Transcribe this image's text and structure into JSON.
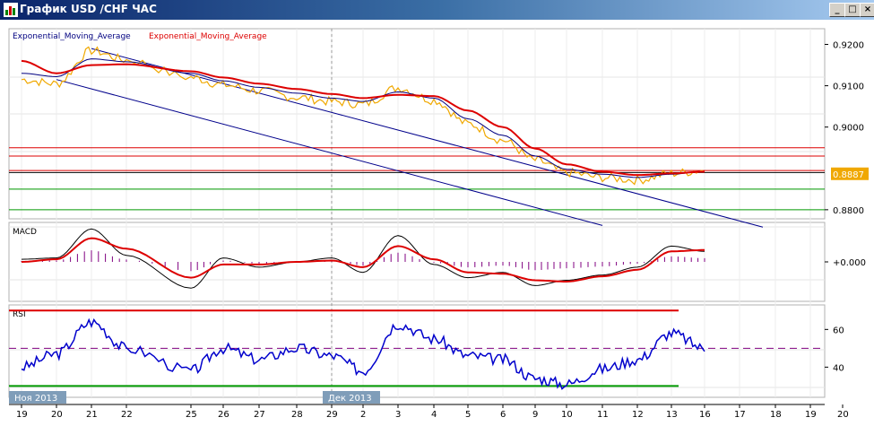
{
  "window": {
    "title": "График USD /CHF ЧАС",
    "min_label": "_",
    "max_label": "□",
    "close_label": "×"
  },
  "colors": {
    "price": "#f0a800",
    "ema_fast": "#000080",
    "ema_slow": "#dd0000",
    "channel": "#00008b",
    "resistance": "#dd0000",
    "support": "#009900",
    "rsi": "#0000cc",
    "macd_hist": "#800080",
    "current_price_bg": "#f0a800"
  },
  "chart_data": [
    {
      "type": "line",
      "name": "price",
      "legend": [
        "Exponential_Moving_Average",
        "Exponential_Moving_Average"
      ],
      "x": [
        "19",
        "20",
        "21",
        "22",
        "25",
        "26",
        "27",
        "28",
        "29",
        "2",
        "3",
        "4",
        "5",
        "6",
        "9",
        "10",
        "11",
        "12",
        "13",
        "16"
      ],
      "ylim": [
        0.8778,
        0.9238
      ],
      "yticks": [
        "0.9200",
        "0.9100",
        "0.9000",
        "0.8800"
      ],
      "current_price": "0.8887",
      "series": [
        {
          "values": [
            0.9115,
            0.9105,
            0.9185,
            0.9162,
            0.912,
            0.9102,
            0.9088,
            0.9072,
            0.9062,
            0.9055,
            0.9095,
            0.9065,
            0.9008,
            0.8968,
            0.892,
            0.889,
            0.8878,
            0.8872,
            0.8888,
            0.8895
          ]
        },
        {
          "values": [
            0.913,
            0.9122,
            0.9165,
            0.9158,
            0.913,
            0.9112,
            0.9096,
            0.9082,
            0.907,
            0.9062,
            0.9085,
            0.907,
            0.902,
            0.898,
            0.893,
            0.8898,
            0.8886,
            0.8878,
            0.8886,
            0.8893
          ]
        },
        {
          "values": [
            0.916,
            0.913,
            0.915,
            0.9152,
            0.9135,
            0.912,
            0.9105,
            0.9092,
            0.908,
            0.907,
            0.9078,
            0.9075,
            0.904,
            0.9,
            0.8948,
            0.891,
            0.8892,
            0.8884,
            0.8888,
            0.8892
          ]
        }
      ],
      "hlines": {
        "resistance": [
          0.895,
          0.893,
          0.8895
        ],
        "black": [
          0.889
        ],
        "support": [
          0.885,
          0.88
        ]
      },
      "channel": [
        {
          "x0": "21",
          "y0": 0.919,
          "x1": "19",
          "y1": 0.8758
        },
        {
          "x0": "20",
          "y0": 0.9115,
          "x1": "12",
          "y1": 0.8762
        }
      ]
    },
    {
      "type": "line",
      "title": "MACD",
      "x": [
        "19",
        "20",
        "21",
        "22",
        "25",
        "26",
        "27",
        "28",
        "29",
        "2",
        "3",
        "4",
        "5",
        "6",
        "9",
        "10",
        "11",
        "12",
        "13",
        "16"
      ],
      "ylim": [
        -0.003,
        0.003
      ],
      "yticks": [
        "+0.000"
      ],
      "series": [
        {
          "values": [
            0.0002,
            0.0003,
            0.0025,
            0.0005,
            -0.002,
            0.0003,
            -0.0004,
            0.0,
            0.0003,
            -0.0008,
            0.002,
            -0.0002,
            -0.0012,
            -0.0008,
            -0.0018,
            -0.0014,
            -0.001,
            -0.0004,
            0.0012,
            0.0008
          ]
        },
        {
          "values": [
            0.0,
            0.0002,
            0.0018,
            0.001,
            -0.0012,
            -0.0002,
            -0.0002,
            0.0,
            0.0001,
            -0.0004,
            0.0012,
            0.0002,
            -0.0008,
            -0.0009,
            -0.0014,
            -0.0015,
            -0.0011,
            -0.0006,
            0.0008,
            0.0009
          ]
        }
      ]
    },
    {
      "type": "line",
      "title": "RSI",
      "x": [
        "19",
        "20",
        "21",
        "22",
        "25",
        "26",
        "27",
        "28",
        "29",
        "2",
        "3",
        "4",
        "5",
        "6",
        "9",
        "10",
        "11",
        "12",
        "13",
        "16"
      ],
      "ylim": [
        24,
        73
      ],
      "yticks": [
        "60",
        "40"
      ],
      "levels": [
        70,
        50,
        30
      ],
      "series": [
        {
          "values": [
            40,
            47,
            64,
            50,
            38,
            50,
            44,
            50,
            46,
            38,
            63,
            55,
            46,
            44,
            34,
            31,
            39,
            44,
            58,
            50
          ]
        }
      ]
    }
  ],
  "axis": {
    "month_labels": [
      "Ноя 2013",
      "Дек 2013"
    ],
    "date_labels": [
      "19",
      "20",
      "21",
      "22",
      "25",
      "26",
      "27",
      "28",
      "29",
      "2",
      "3",
      "4",
      "5",
      "6",
      "9",
      "10",
      "11",
      "12",
      "13",
      "16",
      "17",
      "18",
      "19",
      "20"
    ]
  }
}
